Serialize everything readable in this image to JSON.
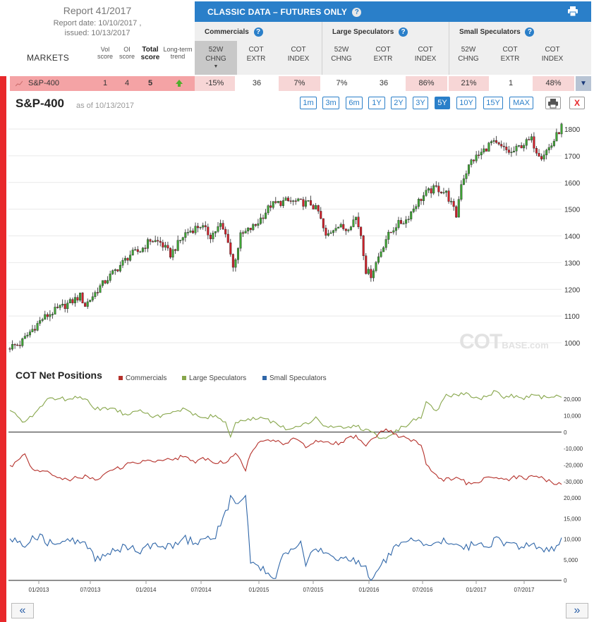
{
  "report": {
    "title": "Report 41/2017",
    "date": "Report date: 10/10/2017 ,",
    "issued": "issued: 10/13/2017",
    "markets_label": "MARKETS",
    "col_vol": [
      "Vol",
      "score"
    ],
    "col_oi": [
      "OI",
      "score"
    ],
    "col_total": [
      "Total",
      "score"
    ],
    "col_trend": [
      "Long-term",
      "trend"
    ]
  },
  "classic": {
    "title": "CLASSIC DATA – FUTURES ONLY",
    "groups": [
      "Commercials",
      "Large Speculators",
      "Small Speculators"
    ],
    "sub": [
      [
        "52W",
        "CHNG"
      ],
      [
        "COT",
        "EXTR"
      ],
      [
        "COT",
        "INDEX"
      ],
      [
        "52W",
        "CHNG"
      ],
      [
        "COT",
        "EXTR"
      ],
      [
        "COT",
        "INDEX"
      ],
      [
        "52W",
        "CHNG"
      ],
      [
        "COT",
        "EXTR"
      ],
      [
        "COT",
        "INDEX"
      ]
    ]
  },
  "market_row": {
    "name": "S&P-400",
    "vol": "1",
    "oi": "4",
    "total": "5",
    "values": [
      "-15%",
      "36",
      "7%",
      "7%",
      "36",
      "86%",
      "21%",
      "1",
      "48%"
    ],
    "highlights": [
      "#f7d6d6",
      "#ffffff",
      "#f7d6d6",
      "#ffffff",
      "#ffffff",
      "#f7d6d6",
      "#f7d6d6",
      "#ffffff",
      "#f7d6d6"
    ]
  },
  "chart_header": {
    "title": "S&P-400",
    "as_of": "as of 10/13/2017",
    "ranges": [
      "1m",
      "3m",
      "6m",
      "1Y",
      "2Y",
      "3Y",
      "5Y",
      "10Y",
      "15Y",
      "MAX"
    ],
    "active_range": "5Y",
    "close_label": "X"
  },
  "watermark": {
    "main": "COT",
    "sub": "BASE.com"
  },
  "net_positions": {
    "title": "COT Net Positions",
    "legend": [
      "Commercials",
      "Large Speculators",
      "Small Speculators"
    ]
  },
  "colors": {
    "accent": "#2a7fc9",
    "commercials": "#b5312b",
    "large": "#87a64b",
    "small": "#2f66a8",
    "up": "#3fa535",
    "down": "#d1202a"
  },
  "chart_data": [
    {
      "type": "candlestick",
      "title": "S&P-400",
      "x": [
        "01/2013",
        "07/2013",
        "01/2014",
        "07/2014",
        "01/2015",
        "07/2015",
        "01/2016",
        "07/2016",
        "01/2017",
        "07/2017"
      ],
      "ylim": [
        940,
        1830
      ],
      "yticks": [
        1000,
        1100,
        1200,
        1300,
        1400,
        1500,
        1600,
        1700,
        1800
      ],
      "close_path": [
        [
          0,
          985
        ],
        [
          4,
          995
        ],
        [
          8,
          1040
        ],
        [
          13,
          1090
        ],
        [
          18,
          1120
        ],
        [
          24,
          1150
        ],
        [
          28,
          1175
        ],
        [
          30,
          1140
        ],
        [
          36,
          1210
        ],
        [
          40,
          1250
        ],
        [
          44,
          1290
        ],
        [
          48,
          1330
        ],
        [
          52,
          1345
        ],
        [
          56,
          1385
        ],
        [
          60,
          1375
        ],
        [
          64,
          1330
        ],
        [
          70,
          1410
        ],
        [
          76,
          1440
        ],
        [
          80,
          1400
        ],
        [
          84,
          1440
        ],
        [
          87,
          1385
        ],
        [
          89,
          1280
        ],
        [
          92,
          1400
        ],
        [
          98,
          1440
        ],
        [
          104,
          1515
        ],
        [
          110,
          1530
        ],
        [
          116,
          1525
        ],
        [
          120,
          1520
        ],
        [
          123,
          1490
        ],
        [
          126,
          1395
        ],
        [
          130,
          1440
        ],
        [
          134,
          1425
        ],
        [
          138,
          1470
        ],
        [
          140,
          1405
        ],
        [
          142,
          1270
        ],
        [
          144,
          1255
        ],
        [
          146,
          1300
        ],
        [
          150,
          1390
        ],
        [
          154,
          1440
        ],
        [
          158,
          1460
        ],
        [
          162,
          1520
        ],
        [
          166,
          1560
        ],
        [
          170,
          1580
        ],
        [
          174,
          1560
        ],
        [
          176,
          1520
        ],
        [
          178,
          1475
        ],
        [
          180,
          1600
        ],
        [
          184,
          1680
        ],
        [
          188,
          1710
        ],
        [
          192,
          1750
        ],
        [
          196,
          1730
        ],
        [
          200,
          1710
        ],
        [
          204,
          1740
        ],
        [
          208,
          1760
        ],
        [
          210,
          1720
        ],
        [
          212,
          1700
        ],
        [
          216,
          1740
        ],
        [
          220,
          1810
        ]
      ]
    },
    {
      "type": "line",
      "title": "COT Net Positions",
      "ylim": [
        -35000,
        27000
      ],
      "yticks": [
        20000,
        10000,
        0,
        -10000,
        -20000,
        -30000
      ],
      "series": [
        {
          "name": "Large Speculators",
          "points": [
            [
              0,
              14000
            ],
            [
              6,
              5000
            ],
            [
              10,
              12000
            ],
            [
              16,
              21000
            ],
            [
              22,
              20000
            ],
            [
              30,
              21000
            ],
            [
              34,
              14000
            ],
            [
              40,
              15000
            ],
            [
              46,
              11000
            ],
            [
              52,
              14000
            ],
            [
              58,
              9000
            ],
            [
              64,
              11000
            ],
            [
              70,
              15000
            ],
            [
              74,
              10000
            ],
            [
              78,
              8000
            ],
            [
              82,
              11000
            ],
            [
              86,
              5000
            ],
            [
              88,
              -2000
            ],
            [
              90,
              6000
            ],
            [
              94,
              7000
            ],
            [
              100,
              9000
            ],
            [
              106,
              5000
            ],
            [
              110,
              2000
            ],
            [
              114,
              4000
            ],
            [
              118,
              5000
            ],
            [
              122,
              8000
            ],
            [
              126,
              3000
            ],
            [
              130,
              4000
            ],
            [
              134,
              2000
            ],
            [
              138,
              4000
            ],
            [
              142,
              1000
            ],
            [
              146,
              -2000
            ],
            [
              150,
              -4000
            ],
            [
              154,
              1000
            ],
            [
              158,
              4000
            ],
            [
              162,
              8000
            ],
            [
              164,
              9000
            ],
            [
              166,
              18000
            ],
            [
              170,
              12000
            ],
            [
              174,
              22000
            ],
            [
              178,
              23000
            ],
            [
              182,
              24000
            ],
            [
              186,
              20000
            ],
            [
              190,
              21000
            ],
            [
              194,
              26000
            ],
            [
              196,
              21000
            ],
            [
              200,
              22000
            ],
            [
              204,
              20000
            ],
            [
              208,
              22000
            ],
            [
              212,
              21000
            ],
            [
              216,
              21000
            ],
            [
              220,
              22000
            ]
          ]
        },
        {
          "name": "Commercials",
          "points": [
            [
              0,
              -21000
            ],
            [
              6,
              -14000
            ],
            [
              10,
              -24000
            ],
            [
              16,
              -25000
            ],
            [
              22,
              -29000
            ],
            [
              30,
              -27000
            ],
            [
              34,
              -29000
            ],
            [
              40,
              -24000
            ],
            [
              46,
              -20000
            ],
            [
              52,
              -18000
            ],
            [
              58,
              -17000
            ],
            [
              64,
              -16000
            ],
            [
              70,
              -15000
            ],
            [
              74,
              -18000
            ],
            [
              78,
              -16000
            ],
            [
              82,
              -18000
            ],
            [
              86,
              -19000
            ],
            [
              88,
              -16000
            ],
            [
              90,
              -12000
            ],
            [
              94,
              -23000
            ],
            [
              96,
              -13000
            ],
            [
              100,
              -6000
            ],
            [
              106,
              -5000
            ],
            [
              110,
              -7000
            ],
            [
              114,
              -4000
            ],
            [
              118,
              -9000
            ],
            [
              122,
              -6000
            ],
            [
              126,
              -5000
            ],
            [
              130,
              -7000
            ],
            [
              134,
              -5000
            ],
            [
              138,
              -2000
            ],
            [
              142,
              -8000
            ],
            [
              146,
              -3000
            ],
            [
              150,
              2000
            ],
            [
              154,
              -2000
            ],
            [
              158,
              -4000
            ],
            [
              162,
              -6000
            ],
            [
              164,
              -7000
            ],
            [
              166,
              -20000
            ],
            [
              170,
              -27000
            ],
            [
              174,
              -29000
            ],
            [
              178,
              -27000
            ],
            [
              182,
              -31000
            ],
            [
              186,
              -30000
            ],
            [
              190,
              -28000
            ],
            [
              194,
              -28000
            ],
            [
              198,
              -29000
            ],
            [
              202,
              -27000
            ],
            [
              206,
              -28000
            ],
            [
              210,
              -27000
            ],
            [
              214,
              -29000
            ],
            [
              220,
              -32000
            ]
          ]
        }
      ]
    },
    {
      "type": "line",
      "ylim": [
        0,
        21000
      ],
      "yticks": [
        20000,
        15000,
        10000,
        5000,
        0
      ],
      "series": [
        {
          "name": "Small Speculators",
          "points": [
            [
              0,
              10000
            ],
            [
              6,
              9000
            ],
            [
              10,
              11000
            ],
            [
              16,
              9000
            ],
            [
              22,
              10000
            ],
            [
              28,
              9000
            ],
            [
              32,
              8000
            ],
            [
              34,
              5000
            ],
            [
              40,
              7000
            ],
            [
              46,
              8000
            ],
            [
              52,
              7000
            ],
            [
              58,
              9000
            ],
            [
              64,
              8000
            ],
            [
              70,
              10000
            ],
            [
              74,
              9000
            ],
            [
              78,
              10000
            ],
            [
              82,
              11000
            ],
            [
              84,
              14000
            ],
            [
              86,
              16000
            ],
            [
              88,
              20000
            ],
            [
              90,
              18000
            ],
            [
              92,
              19000
            ],
            [
              94,
              20000
            ],
            [
              96,
              5000
            ],
            [
              100,
              3000
            ],
            [
              104,
              1000
            ],
            [
              106,
              0
            ],
            [
              108,
              5000
            ],
            [
              112,
              8000
            ],
            [
              116,
              9000
            ],
            [
              118,
              3000
            ],
            [
              120,
              6000
            ],
            [
              124,
              8000
            ],
            [
              128,
              6000
            ],
            [
              132,
              5000
            ],
            [
              136,
              5000
            ],
            [
              140,
              4000
            ],
            [
              142,
              3000
            ],
            [
              144,
              0
            ],
            [
              146,
              2000
            ],
            [
              150,
              5000
            ],
            [
              154,
              8000
            ],
            [
              158,
              9000
            ],
            [
              162,
              10000
            ],
            [
              166,
              8000
            ],
            [
              170,
              9000
            ],
            [
              174,
              10000
            ],
            [
              178,
              9000
            ],
            [
              182,
              8000
            ],
            [
              186,
              9000
            ],
            [
              190,
              8000
            ],
            [
              194,
              10000
            ],
            [
              198,
              9000
            ],
            [
              202,
              8000
            ],
            [
              206,
              9000
            ],
            [
              210,
              8000
            ],
            [
              214,
              7000
            ],
            [
              218,
              8000
            ],
            [
              220,
              10000
            ]
          ]
        }
      ]
    }
  ]
}
